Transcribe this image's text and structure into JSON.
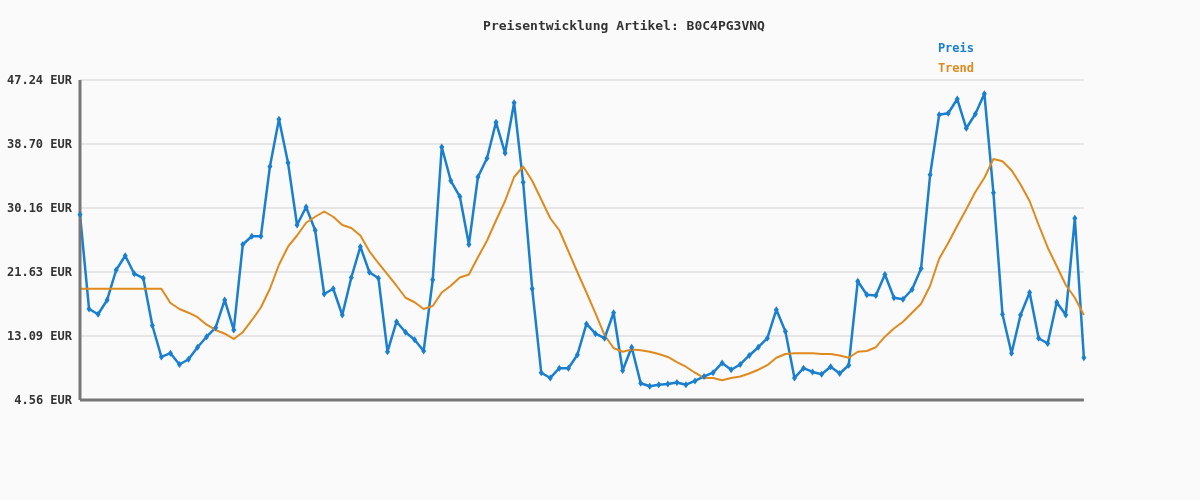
{
  "chart_data": {
    "type": "line",
    "title": "Preisentwicklung Artikel: B0C4PG3VNQ",
    "categories": [
      null,
      null,
      null,
      null,
      null,
      null,
      null,
      null,
      null,
      null,
      null,
      null,
      null,
      null,
      null,
      null,
      null,
      null,
      null,
      null,
      null,
      null,
      null,
      null,
      null,
      null,
      null,
      null,
      null,
      null,
      null,
      null,
      null,
      null,
      null,
      null,
      null,
      null,
      null,
      null,
      null,
      null,
      null,
      null,
      null,
      null,
      null,
      null,
      null,
      null,
      null,
      null,
      null,
      null,
      null,
      null,
      null,
      null,
      null,
      null,
      null,
      null,
      null,
      null,
      null,
      null,
      null,
      null,
      null,
      null,
      null,
      null,
      null,
      null,
      null,
      null,
      null,
      null,
      null,
      null,
      null,
      null,
      null,
      null,
      null,
      null,
      null,
      null,
      null,
      null,
      null,
      null,
      null,
      null,
      null,
      null,
      null,
      null,
      null,
      null,
      null,
      null,
      null,
      null,
      null,
      null,
      null,
      null,
      null,
      null,
      null,
      null
    ],
    "series": [
      {
        "name": "Preis",
        "color": "#1a7fcf",
        "marker": "diamond",
        "values": [
          29.3,
          16.7,
          16.0,
          17.9,
          21.9,
          23.8,
          21.4,
          20.8,
          14.5,
          10.3,
          10.8,
          9.3,
          10.0,
          11.6,
          13.0,
          14.2,
          17.9,
          13.9,
          25.3,
          26.4,
          26.4,
          35.7,
          42.0,
          36.2,
          27.9,
          30.3,
          27.2,
          18.7,
          19.4,
          15.9,
          20.9,
          25.0,
          21.6,
          20.8,
          11.0,
          15.0,
          13.6,
          12.6,
          11.1,
          20.6,
          38.3,
          33.8,
          31.7,
          25.3,
          34.3,
          36.8,
          41.6,
          37.5,
          44.2,
          33.6,
          19.4,
          8.2,
          7.5,
          8.8,
          8.8,
          10.6,
          14.7,
          13.4,
          12.8,
          16.2,
          8.5,
          11.6,
          6.8,
          6.4,
          6.6,
          6.7,
          6.9,
          6.6,
          7.1,
          7.7,
          8.2,
          9.5,
          8.6,
          9.3,
          10.5,
          11.6,
          12.8,
          16.6,
          13.7,
          7.5,
          8.8,
          8.3,
          8.0,
          9.0,
          8.1,
          9.2,
          20.4,
          18.6,
          18.5,
          21.3,
          18.2,
          18.0,
          19.3,
          22.1,
          34.6,
          42.6,
          42.8,
          44.7,
          40.8,
          42.7,
          45.4,
          32.2,
          16.0,
          10.8,
          15.9,
          18.9,
          12.8,
          12.1,
          17.6,
          15.9,
          28.8,
          10.2
        ]
      },
      {
        "name": "Trend",
        "color": "#e08a1e",
        "marker": "none",
        "values": [
          19.4,
          19.4,
          19.4,
          19.4,
          19.4,
          19.4,
          19.4,
          19.4,
          19.4,
          19.4,
          17.5,
          16.7,
          16.2,
          15.6,
          14.6,
          13.9,
          13.4,
          12.7,
          13.6,
          15.2,
          16.9,
          19.4,
          22.6,
          25.0,
          26.5,
          28.2,
          29.0,
          29.7,
          29.0,
          27.9,
          27.5,
          26.5,
          24.4,
          22.8,
          21.3,
          19.8,
          18.2,
          17.6,
          16.7,
          17.1,
          18.9,
          19.8,
          20.9,
          21.3,
          23.6,
          25.8,
          28.5,
          31.1,
          34.3,
          35.7,
          33.8,
          31.3,
          28.8,
          27.2,
          24.4,
          21.6,
          18.9,
          16.1,
          13.2,
          11.5,
          11.0,
          11.3,
          11.2,
          11.0,
          10.7,
          10.3,
          9.6,
          9.0,
          8.2,
          7.5,
          7.5,
          7.2,
          7.5,
          7.7,
          8.1,
          8.6,
          9.2,
          10.2,
          10.7,
          10.8,
          10.8,
          10.8,
          10.7,
          10.7,
          10.5,
          10.2,
          11.0,
          11.1,
          11.6,
          13.0,
          14.1,
          15.0,
          16.2,
          17.4,
          19.8,
          23.4,
          25.5,
          27.8,
          30.0,
          32.3,
          34.2,
          36.7,
          36.4,
          35.2,
          33.3,
          31.1,
          27.9,
          24.9,
          22.4,
          19.9,
          18.2,
          15.9
        ]
      }
    ],
    "ylim": [
      4.56,
      47.24
    ],
    "yticks": [
      {
        "value": 4.56,
        "label": "4.56 EUR"
      },
      {
        "value": 13.09,
        "label": "13.09 EUR"
      },
      {
        "value": 21.63,
        "label": "21.63 EUR"
      },
      {
        "value": 30.16,
        "label": "30.16 EUR"
      },
      {
        "value": 38.7,
        "label": "38.70 EUR"
      },
      {
        "value": 47.24,
        "label": "47.24 EUR"
      }
    ],
    "grid": "y",
    "legend": "top right",
    "line_style": "solid"
  }
}
